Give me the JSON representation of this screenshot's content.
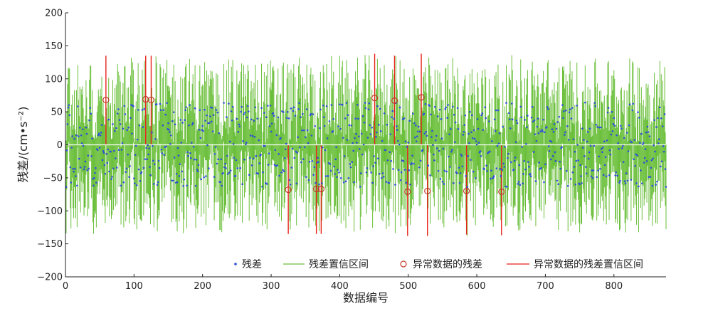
{
  "chart_data": {
    "type": "scatter",
    "title": "",
    "xlabel": "数据编号",
    "ylabel": "残差/(cm•s⁻²)",
    "xlim": [
      0,
      876
    ],
    "ylim": [
      -200,
      200
    ],
    "xticks": [
      0,
      100,
      200,
      300,
      400,
      500,
      600,
      700,
      800
    ],
    "yticks": [
      -200,
      -150,
      -100,
      -50,
      0,
      50,
      100,
      150,
      200
    ],
    "grid": false,
    "legend_position": "bottom-right",
    "n_points": 876,
    "series": [
      {
        "name": "残差",
        "kind": "points",
        "color": "#2f4fd8",
        "description_values": "dense residual points roughly uniformly spread within about ±65 around 0 for x = 1..876"
      },
      {
        "name": "残差置信区间",
        "kind": "interval",
        "color": "#6abf3a",
        "description_values": "vertical confidence interval per point, spanning roughly ±70 around each residual"
      },
      {
        "name": "异常数据的残差",
        "kind": "outlier-points",
        "color": "#c0392b",
        "points": [
          {
            "x": 59,
            "y": 68
          },
          {
            "x": 117,
            "y": 69
          },
          {
            "x": 125,
            "y": 68
          },
          {
            "x": 325,
            "y": -68
          },
          {
            "x": 366,
            "y": -67
          },
          {
            "x": 373,
            "y": -67
          },
          {
            "x": 451,
            "y": 71
          },
          {
            "x": 480,
            "y": 67
          },
          {
            "x": 499,
            "y": -71
          },
          {
            "x": 519,
            "y": 72
          },
          {
            "x": 528,
            "y": -70
          },
          {
            "x": 585,
            "y": -70
          },
          {
            "x": 636,
            "y": -71
          }
        ]
      },
      {
        "name": "异常数据的残差置信区间",
        "kind": "outlier-interval",
        "color": "#e8231a",
        "intervals": [
          {
            "x": 59,
            "low": 0,
            "high": 135
          },
          {
            "x": 117,
            "low": 0,
            "high": 135
          },
          {
            "x": 125,
            "low": 0,
            "high": 135
          },
          {
            "x": 325,
            "low": -135,
            "high": 0
          },
          {
            "x": 366,
            "low": -135,
            "high": 0
          },
          {
            "x": 373,
            "low": -135,
            "high": 0
          },
          {
            "x": 451,
            "low": 0,
            "high": 138
          },
          {
            "x": 480,
            "low": 0,
            "high": 135
          },
          {
            "x": 499,
            "low": -138,
            "high": 0
          },
          {
            "x": 519,
            "low": 0,
            "high": 138
          },
          {
            "x": 528,
            "low": -138,
            "high": 0
          },
          {
            "x": 585,
            "low": -136,
            "high": 0
          },
          {
            "x": 636,
            "low": -137,
            "high": 0
          }
        ]
      }
    ]
  },
  "colors": {
    "residual": "#2f4fd8",
    "interval": "#6abf3a",
    "outlier_marker": "#c0392b",
    "outlier_interval": "#e8231a",
    "zero_line": "#ffffff",
    "axis": "#222222"
  }
}
